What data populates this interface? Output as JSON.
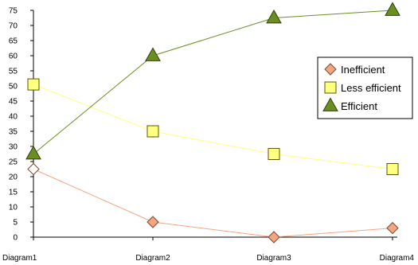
{
  "chart_data": {
    "type": "line",
    "categories": [
      "Diagram1",
      "Diagram2",
      "Diagram3",
      "Diagram4"
    ],
    "yticks": [
      "0",
      "5",
      "10",
      "15",
      "20",
      "25",
      "30",
      "35",
      "40",
      "45",
      "50",
      "55",
      "60",
      "65",
      "70",
      "75"
    ],
    "ylim": [
      0,
      75
    ],
    "grid": false,
    "legend_position": "right",
    "series": [
      {
        "name": "Inefficient",
        "values": [
          22.5,
          5,
          0,
          3
        ],
        "marker": "diamond",
        "line_color": "#f4a582",
        "fill_color": "#f4a582",
        "edge_color": "#7a4a2e"
      },
      {
        "name": "Less efficient",
        "values": [
          50.5,
          35,
          27.5,
          22.5
        ],
        "marker": "square",
        "line_color": "#ffff80",
        "fill_color": "#ffff80",
        "edge_color": "#5a5a00"
      },
      {
        "name": "Efficient",
        "values": [
          27.5,
          60,
          72.5,
          75
        ],
        "marker": "triangle",
        "line_color": "#6b8e23",
        "fill_color": "#6b8e23",
        "edge_color": "#2f3f10"
      }
    ]
  }
}
